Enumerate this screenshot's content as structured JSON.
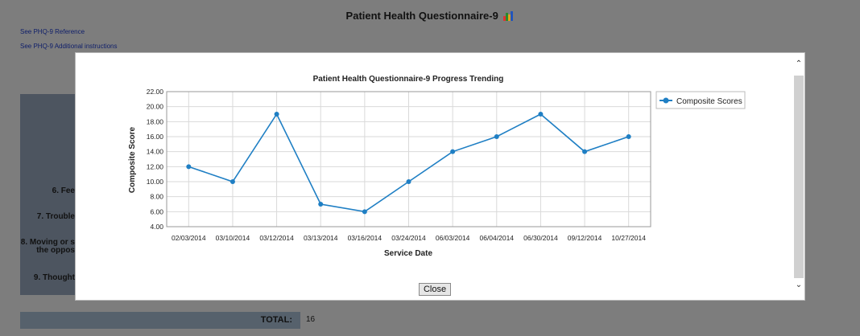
{
  "header": {
    "title": "Patient Health Questionnaire-9",
    "links": [
      "See PHQ-9 Reference",
      "See PHQ-9 Additional instructions"
    ]
  },
  "background_form": {
    "partial_items": [
      {
        "lines": [
          "6. Fee"
        ]
      },
      {
        "lines": [
          "7. Trouble"
        ]
      },
      {
        "lines": [
          "8. Moving or s",
          "the oppos"
        ]
      },
      {
        "lines": [
          "9. Thought"
        ]
      }
    ],
    "total_label": "TOTAL:",
    "total_value": "16"
  },
  "modal": {
    "close_label": "Close"
  },
  "colors": {
    "series": "#1f7fc4",
    "overlay": "#7d7d7d"
  },
  "chart_data": {
    "type": "line",
    "title": "Patient Health Questionnaire-9 Progress Trending",
    "xlabel": "Service Date",
    "ylabel": "Composite Score",
    "categories": [
      "02/03/2014",
      "03/10/2014",
      "03/12/2014",
      "03/13/2014",
      "03/16/2014",
      "03/24/2014",
      "06/03/2014",
      "06/04/2014",
      "06/30/2014",
      "09/12/2014",
      "10/27/2014"
    ],
    "series": [
      {
        "name": "Composite Scores",
        "values": [
          12,
          10,
          19,
          7,
          6,
          10,
          14,
          16,
          19,
          14,
          16
        ]
      }
    ],
    "ylim": [
      4,
      22
    ],
    "yticks": [
      "4.00",
      "6.00",
      "8.00",
      "10.00",
      "12.00",
      "14.00",
      "16.00",
      "18.00",
      "20.00",
      "22.00"
    ],
    "grid": true,
    "legend": "top-right"
  }
}
